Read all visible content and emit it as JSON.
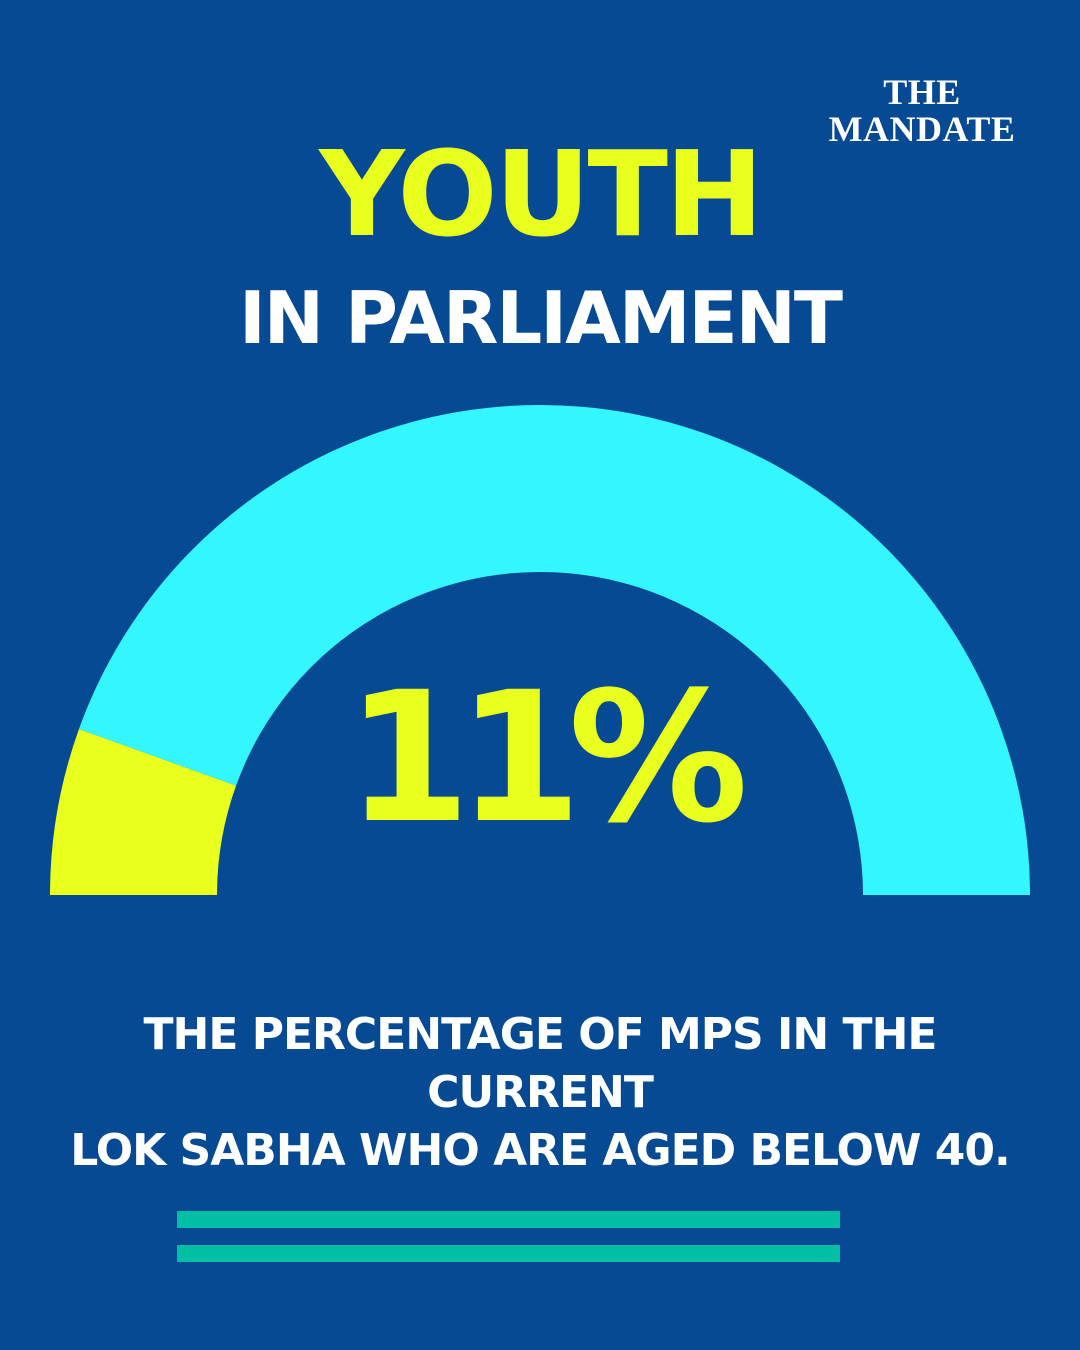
{
  "brand": {
    "line1": "THE",
    "line2": "MANDATE"
  },
  "header": {
    "title": "YOUTH",
    "subtitle": "IN PARLIAMENT"
  },
  "caption": {
    "line1": "THE PERCENTAGE OF MPS IN THE CURRENT",
    "line2": "LOK SABHA WHO ARE AGED BELOW 40."
  },
  "colors": {
    "background": "#064a94",
    "accent": "#e9ff1e",
    "gauge_track": "#33f6ff",
    "rule": "#00bfa5",
    "text": "#ffffff"
  },
  "chart_data": {
    "type": "gauge",
    "value": 11,
    "max": 100,
    "unit": "%",
    "display_value": "11%",
    "segments": [
      {
        "value": 11,
        "color": "#e9ff1e"
      },
      {
        "value": 89,
        "color": "#33f6ff"
      }
    ]
  }
}
